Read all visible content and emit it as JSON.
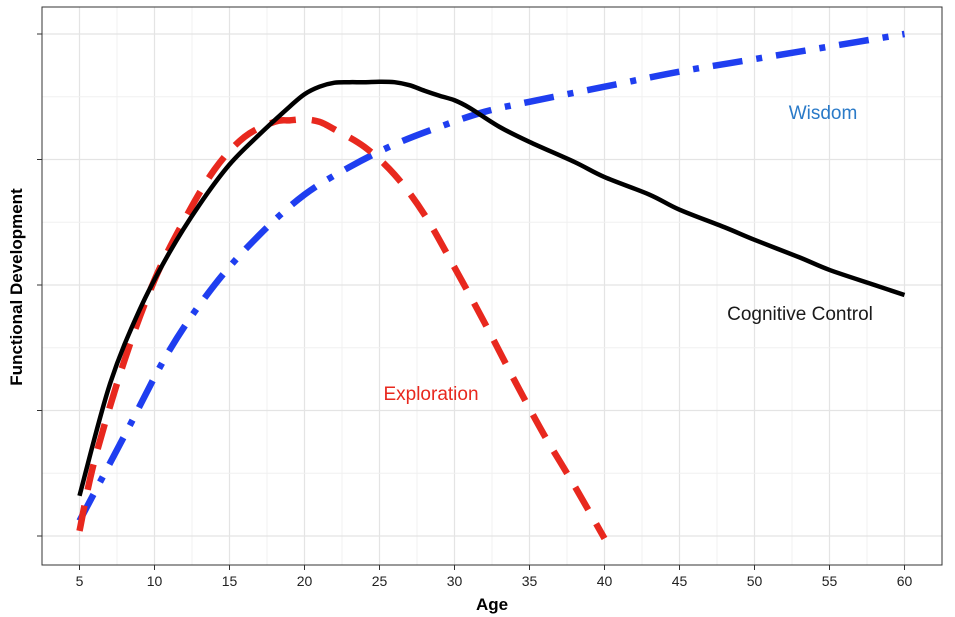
{
  "chart_data": {
    "type": "line",
    "title": "",
    "xlabel": "Age",
    "ylabel": "Functional Development",
    "xlim": [
      2.5,
      62.5
    ],
    "ylim": [
      0,
      100
    ],
    "x_ticks": [
      5,
      10,
      15,
      20,
      25,
      30,
      35,
      40,
      45,
      50,
      55,
      60
    ],
    "y_ticks_labeled": false,
    "grid": true,
    "legend": "none (series labeled directly on plot)",
    "series": [
      {
        "name": "Cognitive Control",
        "color": "#000000",
        "style": "solid",
        "x": [
          5,
          7,
          9,
          11,
          13,
          15,
          17,
          19,
          20,
          21,
          22,
          23,
          24,
          25,
          26,
          27,
          28,
          29,
          30,
          31,
          33,
          35,
          38,
          40,
          43,
          45,
          48,
          50,
          53,
          55,
          58,
          60
        ],
        "y": [
          8,
          30,
          45,
          56.5,
          66,
          74,
          80,
          85.5,
          88,
          89.5,
          90.3,
          90.4,
          90.4,
          90.5,
          90.4,
          89.8,
          88.7,
          87.7,
          86.8,
          85.3,
          81.5,
          78.5,
          74.5,
          71.5,
          68,
          65,
          61.5,
          59,
          55.5,
          53,
          50,
          48
        ]
      },
      {
        "name": "Exploration",
        "color": "#e8281e",
        "style": "dashed",
        "x": [
          5,
          6,
          8,
          10,
          12,
          14,
          16,
          18,
          19,
          20,
          21,
          22,
          24,
          26,
          28,
          30,
          32,
          34,
          36,
          38,
          40
        ],
        "y": [
          1,
          15,
          35,
          51,
          63,
          73,
          79.5,
          82.5,
          82.8,
          83,
          82.5,
          81,
          77.5,
          72,
          64,
          53.5,
          42.5,
          31,
          20,
          10,
          -0.5
        ]
      },
      {
        "name": "Wisdom",
        "color": "#1f3ef0",
        "style": "dash-dot",
        "x": [
          5,
          8,
          11,
          14,
          17,
          20,
          23,
          26,
          29,
          32,
          35,
          40,
          45,
          50,
          55,
          60
        ],
        "y": [
          3,
          20,
          37,
          50,
          60,
          68,
          73.5,
          78,
          81.5,
          84.5,
          86.5,
          89.5,
          92.5,
          95,
          97.5,
          100
        ]
      }
    ],
    "annotations": [
      {
        "text": "Wisdom",
        "color": "#2a7ac8"
      },
      {
        "text": "Cognitive Control",
        "color": "#1a1a1a"
      },
      {
        "text": "Exploration",
        "color": "#e8281e"
      }
    ]
  }
}
